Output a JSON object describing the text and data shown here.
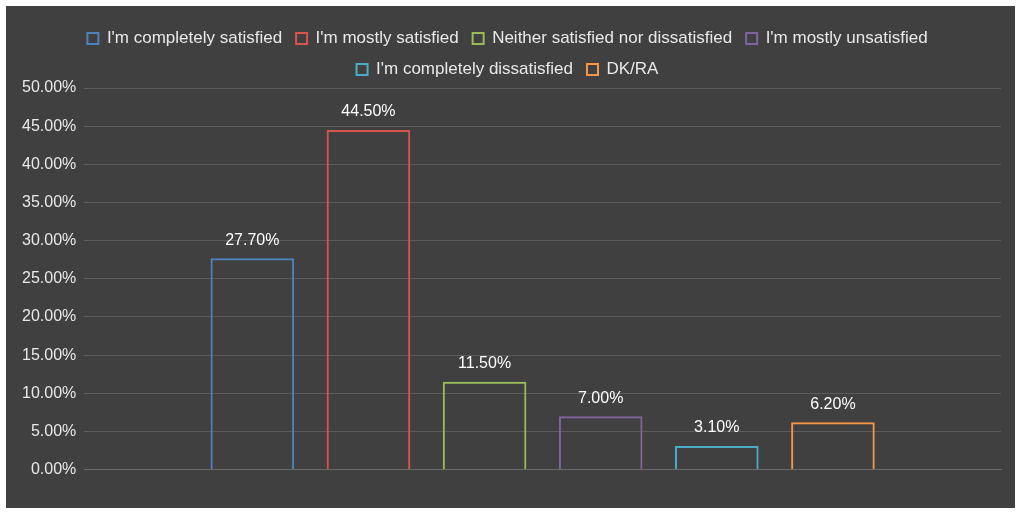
{
  "chart_data": {
    "type": "bar",
    "categories": [
      null
    ],
    "series": [
      {
        "name": "I'm completely satisfied",
        "color": "#4f81bd",
        "values": [
          27.7
        ],
        "value_labels": [
          "27.70%"
        ]
      },
      {
        "name": "I'm mostly satisfied",
        "color": "#d9534f",
        "values": [
          44.5
        ],
        "value_labels": [
          "44.50%"
        ]
      },
      {
        "name": "Neither satisfied nor dissatisfied",
        "color": "#9bbb59",
        "values": [
          11.5
        ],
        "value_labels": [
          "11.50%"
        ]
      },
      {
        "name": "I'm mostly unsatisfied",
        "color": "#8064a2",
        "values": [
          7.0
        ],
        "value_labels": [
          "7.00%"
        ]
      },
      {
        "name": "I'm completely dissatisfied",
        "color": "#4bacc6",
        "values": [
          3.1
        ],
        "value_labels": [
          "3.10%"
        ]
      },
      {
        "name": "DK/RA",
        "color": "#f79646",
        "values": [
          6.2
        ],
        "value_labels": [
          "6.20%"
        ]
      }
    ],
    "ylim": [
      0,
      50
    ],
    "yticks": [
      {
        "value": 0,
        "label": "0.00%"
      },
      {
        "value": 5,
        "label": "5.00%"
      },
      {
        "value": 10,
        "label": "10.00%"
      },
      {
        "value": 15,
        "label": "15.00%"
      },
      {
        "value": 20,
        "label": "20.00%"
      },
      {
        "value": 25,
        "label": "25.00%"
      },
      {
        "value": 30,
        "label": "30.00%"
      },
      {
        "value": 35,
        "label": "35.00%"
      },
      {
        "value": 40,
        "label": "40.00%"
      },
      {
        "value": 45,
        "label": "45.00%"
      },
      {
        "value": 50,
        "label": "50.00%"
      }
    ],
    "grid": "y",
    "legend": "top"
  }
}
